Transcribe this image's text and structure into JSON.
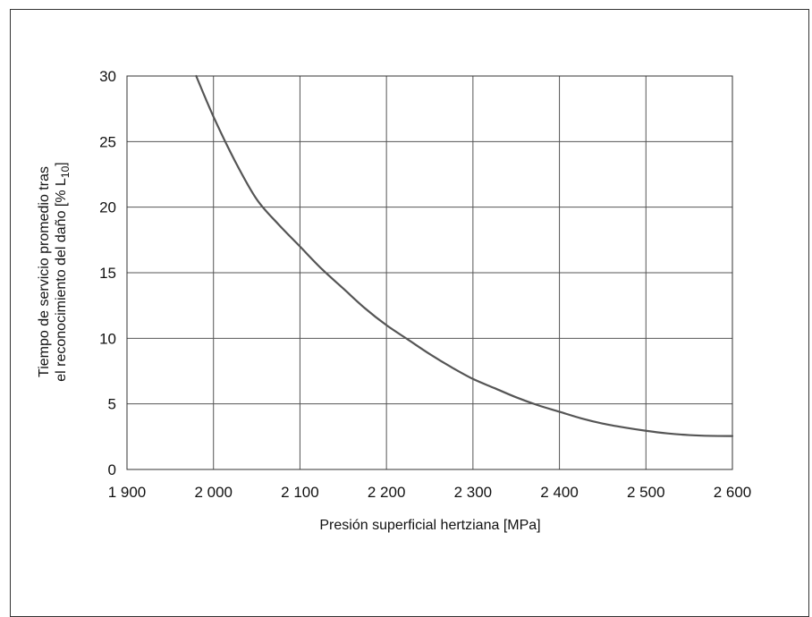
{
  "chart_data": {
    "type": "line",
    "xlabel": "Presión superficial hertziana [MPa]",
    "ylabel": {
      "line1": "Tiempo de servicio promedio tras",
      "line2_prefix": "el reconocimiento del daño [% L",
      "line2_sub": "10",
      "line2_suffix": "]"
    },
    "xlim": [
      1900,
      2600
    ],
    "ylim": [
      0,
      30
    ],
    "x_ticks": [
      {
        "value": 1900,
        "label": "1 900"
      },
      {
        "value": 2000,
        "label": "2 000"
      },
      {
        "value": 2100,
        "label": "2 100"
      },
      {
        "value": 2200,
        "label": "2 200"
      },
      {
        "value": 2300,
        "label": "2 300"
      },
      {
        "value": 2400,
        "label": "2 400"
      },
      {
        "value": 2500,
        "label": "2 500"
      },
      {
        "value": 2600,
        "label": "2 600"
      }
    ],
    "y_ticks": [
      {
        "value": 0,
        "label": "0"
      },
      {
        "value": 5,
        "label": "5"
      },
      {
        "value": 10,
        "label": "10"
      },
      {
        "value": 15,
        "label": "15"
      },
      {
        "value": 20,
        "label": "20"
      },
      {
        "value": 25,
        "label": "25"
      },
      {
        "value": 30,
        "label": "30"
      }
    ],
    "grid": true,
    "series": [
      {
        "color": "#555555",
        "points": [
          [
            1980,
            30.0
          ],
          [
            2000,
            26.9
          ],
          [
            2025,
            23.5
          ],
          [
            2050,
            20.6
          ],
          [
            2075,
            18.7
          ],
          [
            2100,
            17.0
          ],
          [
            2125,
            15.3
          ],
          [
            2150,
            13.8
          ],
          [
            2175,
            12.3
          ],
          [
            2200,
            11.0
          ],
          [
            2225,
            9.9
          ],
          [
            2250,
            8.8
          ],
          [
            2275,
            7.8
          ],
          [
            2300,
            6.9
          ],
          [
            2325,
            6.2
          ],
          [
            2350,
            5.5
          ],
          [
            2375,
            4.9
          ],
          [
            2400,
            4.4
          ],
          [
            2425,
            3.9
          ],
          [
            2450,
            3.5
          ],
          [
            2475,
            3.2
          ],
          [
            2500,
            2.95
          ],
          [
            2525,
            2.75
          ],
          [
            2550,
            2.62
          ],
          [
            2575,
            2.56
          ],
          [
            2600,
            2.55
          ]
        ]
      }
    ]
  }
}
